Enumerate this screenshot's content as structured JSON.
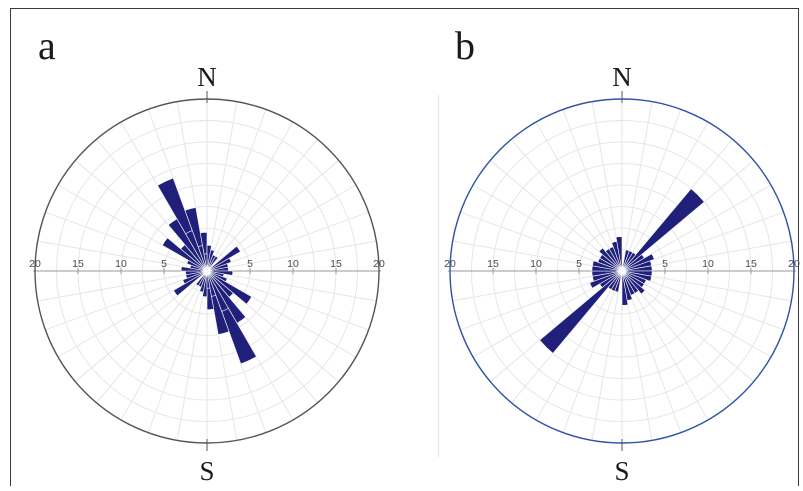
{
  "colors": {
    "petal": "#20207a",
    "circle_a": "#555555",
    "circle_b": "#2f52a8",
    "grid": "#e6e6e6",
    "axis": "#9a9a9a"
  },
  "chart_data": [
    {
      "type": "rose",
      "panel": "a",
      "north_label": "N",
      "south_label": "S",
      "radial_ticks": [
        "20",
        "15",
        "10",
        "5",
        "5",
        "10",
        "15",
        "20"
      ],
      "rlim": [
        0,
        20
      ],
      "sector_width_deg": 10,
      "grid": true,
      "bidirectional": true,
      "petals": [
        {
          "azimuth": 335,
          "value": 11.5
        },
        {
          "azimuth": 345,
          "value": 7.5
        },
        {
          "azimuth": 355,
          "value": 4.5
        },
        {
          "azimuth": 5,
          "value": 3.0
        },
        {
          "azimuth": 15,
          "value": 2.5
        },
        {
          "azimuth": 25,
          "value": 2.0
        },
        {
          "azimuth": 35,
          "value": 2.0
        },
        {
          "azimuth": 55,
          "value": 4.5
        },
        {
          "azimuth": 65,
          "value": 3.0
        },
        {
          "azimuth": 75,
          "value": 2.5
        },
        {
          "azimuth": 85,
          "value": 2.5
        },
        {
          "azimuth": 95,
          "value": 3.0
        },
        {
          "azimuth": 105,
          "value": 2.0
        },
        {
          "azimuth": 115,
          "value": 2.5
        },
        {
          "azimuth": 125,
          "value": 5.0
        },
        {
          "azimuth": 135,
          "value": 4.0
        },
        {
          "azimuth": 145,
          "value": 6.0
        },
        {
          "azimuth": 155,
          "value": 5.0
        },
        {
          "azimuth": 165,
          "value": 3.0
        },
        {
          "azimuth": 175,
          "value": 2.0
        },
        {
          "azimuth": 305,
          "value": 6.0
        },
        {
          "azimuth": 325,
          "value": 7.0
        }
      ]
    },
    {
      "type": "rose",
      "panel": "b",
      "north_label": "N",
      "south_label": "S",
      "radial_ticks": [
        "20",
        "15",
        "10",
        "5",
        "5",
        "10",
        "15",
        "20"
      ],
      "rlim": [
        0,
        20
      ],
      "sector_width_deg": 10,
      "grid": true,
      "bidirectional": true,
      "petals": [
        {
          "azimuth": 45,
          "value": 12.5
        },
        {
          "azimuth": 55,
          "value": 3.0
        },
        {
          "azimuth": 65,
          "value": 4.0
        },
        {
          "azimuth": 75,
          "value": 3.5
        },
        {
          "azimuth": 85,
          "value": 3.5
        },
        {
          "azimuth": 95,
          "value": 3.5
        },
        {
          "azimuth": 105,
          "value": 3.5
        },
        {
          "azimuth": 115,
          "value": 3.0
        },
        {
          "azimuth": 125,
          "value": 3.0
        },
        {
          "azimuth": 135,
          "value": 3.5
        },
        {
          "azimuth": 145,
          "value": 3.0
        },
        {
          "azimuth": 155,
          "value": 3.0
        },
        {
          "azimuth": 165,
          "value": 3.5
        },
        {
          "azimuth": 175,
          "value": 4.0
        },
        {
          "azimuth": 15,
          "value": 2.5
        },
        {
          "azimuth": 25,
          "value": 2.5
        },
        {
          "azimuth": 35,
          "value": 2.5
        }
      ]
    }
  ]
}
